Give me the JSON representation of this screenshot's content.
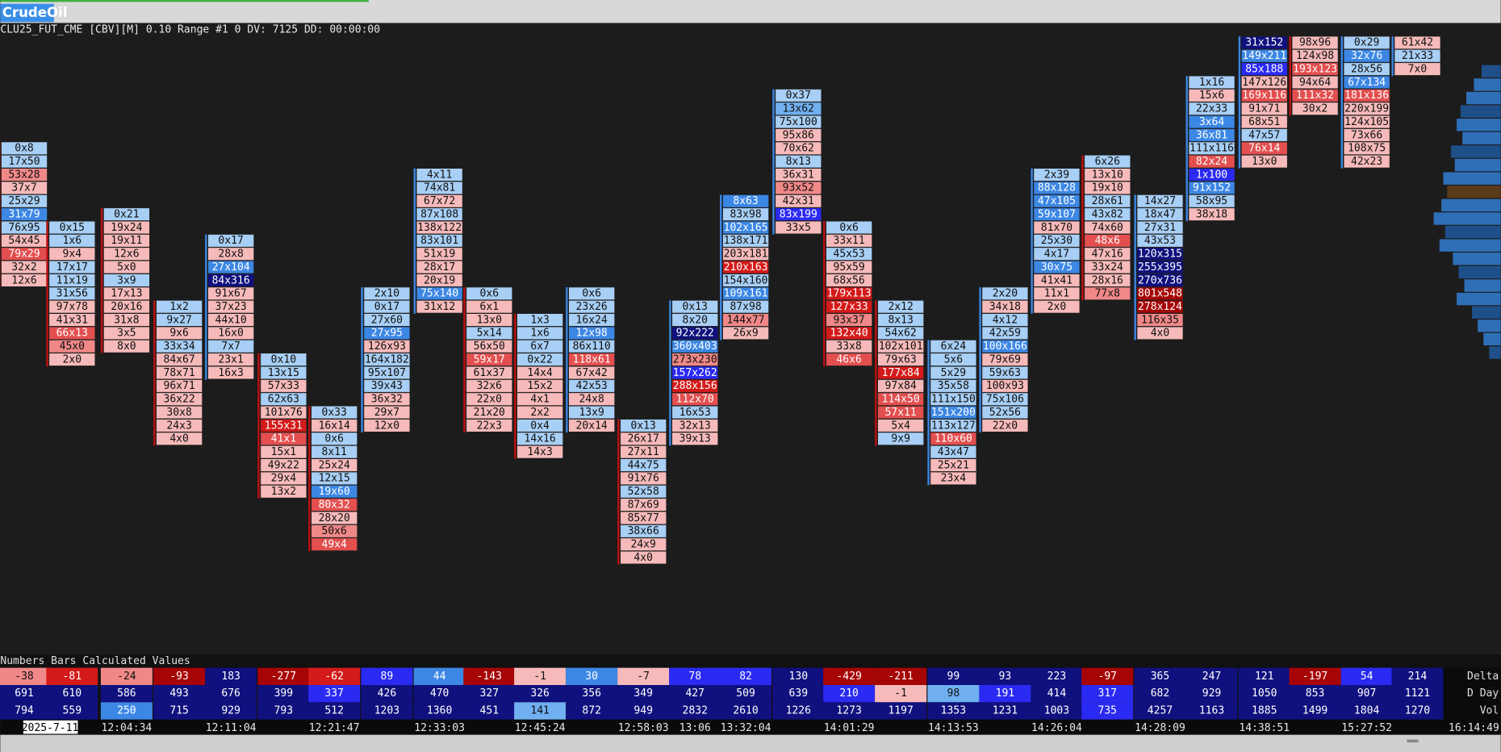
{
  "header": {
    "title": "CrudeOil",
    "info": "CLU25_FUT_CME [CBV][M]  0.10 Range #1 0 DV: 7125 DD: 00:00:00"
  },
  "columns": [
    {
      "cells": [
        "0x8",
        "17x50",
        "53x28",
        "37x7",
        "25x29",
        "31x79",
        "76x95",
        "54x45",
        "79x29",
        "32x2",
        "12x6"
      ],
      "colors": [
        "#a8cff5",
        "#a8cff5",
        "#f08888",
        "#f7baba",
        "#a8cff5",
        "#3c87e4",
        "#a8cff5",
        "#f7baba",
        "#e34f4f",
        "#f7baba",
        "#f7baba"
      ]
    },
    {
      "cells": [
        "0x15",
        "1x6",
        "9x4",
        "17x17",
        "11x19",
        "31x56",
        "97x78",
        "41x31",
        "66x13",
        "45x0",
        "2x0"
      ],
      "colors": [
        "#a8cff5",
        "#a8cff5",
        "#f7baba",
        "#a8cff5",
        "#a8cff5",
        "#a8cff5",
        "#f7baba",
        "#f7baba",
        "#e34f4f",
        "#f08888",
        "#f7baba"
      ]
    },
    {
      "cells": [
        "0x21",
        "19x24",
        "19x11",
        "12x6",
        "5x0",
        "3x9",
        "17x13",
        "20x16",
        "31x8",
        "3x5",
        "8x0"
      ],
      "colors": [
        "#a8cff5",
        "#f7baba",
        "#f7baba",
        "#f7baba",
        "#f7baba",
        "#a8cff5",
        "#f7baba",
        "#f7baba",
        "#f7baba",
        "#f7baba",
        "#f7baba"
      ]
    },
    {
      "cells": [
        "1x2",
        "9x27",
        "9x6",
        "33x34",
        "84x67",
        "78x71",
        "96x71",
        "36x22",
        "30x8",
        "24x3",
        "4x0"
      ],
      "colors": [
        "#a8cff5",
        "#a8cff5",
        "#f7baba",
        "#a8cff5",
        "#f7baba",
        "#f7baba",
        "#f7baba",
        "#f7baba",
        "#f7baba",
        "#f7baba",
        "#f7baba"
      ]
    },
    {
      "cells": [
        "0x17",
        "28x8",
        "27x104",
        "84x316",
        "91x67",
        "37x23",
        "44x10",
        "16x0",
        "7x7",
        "23x1",
        "16x3"
      ],
      "colors": [
        "#a8cff5",
        "#f7baba",
        "#3c87e4",
        "#10107e",
        "#f7baba",
        "#f7baba",
        "#f7baba",
        "#f7baba",
        "#a8cff5",
        "#f7baba",
        "#f7baba"
      ]
    },
    {
      "cells": [
        "0x10",
        "13x15",
        "57x33",
        "62x63",
        "101x76",
        "155x31",
        "41x1",
        "15x1",
        "49x22",
        "29x4",
        "13x2"
      ],
      "colors": [
        "#a8cff5",
        "#a8cff5",
        "#f7baba",
        "#a8cff5",
        "#f7baba",
        "#d41a1a",
        "#e34f4f",
        "#f7baba",
        "#f7baba",
        "#f7baba",
        "#f7baba"
      ]
    },
    {
      "cells": [
        "0x33",
        "16x14",
        "0x6",
        "8x11",
        "25x24",
        "12x15",
        "19x60",
        "80x32",
        "28x20",
        "50x6",
        "49x4"
      ],
      "colors": [
        "#a8cff5",
        "#f7baba",
        "#a8cff5",
        "#a8cff5",
        "#f7baba",
        "#a8cff5",
        "#3c87e4",
        "#e34f4f",
        "#f7baba",
        "#f08888",
        "#e34f4f"
      ]
    },
    {
      "cells": [
        "2x10",
        "0x17",
        "27x60",
        "27x95",
        "126x93",
        "164x182",
        "95x107",
        "39x43",
        "36x32",
        "29x7",
        "12x0"
      ],
      "colors": [
        "#a8cff5",
        "#a8cff5",
        "#a8cff5",
        "#3c87e4",
        "#f7baba",
        "#a8cff5",
        "#a8cff5",
        "#a8cff5",
        "#f7baba",
        "#f7baba",
        "#f7baba"
      ]
    },
    {
      "cells": [
        "4x11",
        "74x81",
        "67x72",
        "87x108",
        "138x122",
        "83x101",
        "51x19",
        "28x17",
        "20x19",
        "75x140",
        "31x12"
      ],
      "colors": [
        "#a8cff5",
        "#a8cff5",
        "#f7baba",
        "#a8cff5",
        "#f7baba",
        "#a8cff5",
        "#f7baba",
        "#f7baba",
        "#f7baba",
        "#3c87e4",
        "#f7baba"
      ]
    },
    {
      "cells": [
        "0x6",
        "6x1",
        "13x0",
        "5x14",
        "56x50",
        "59x17",
        "61x37",
        "32x6",
        "22x0",
        "21x20",
        "22x3"
      ],
      "colors": [
        "#a8cff5",
        "#f7baba",
        "#f7baba",
        "#a8cff5",
        "#f7baba",
        "#e34f4f",
        "#f7baba",
        "#f7baba",
        "#f7baba",
        "#f7baba",
        "#f7baba"
      ]
    },
    {
      "cells": [
        "1x3",
        "1x6",
        "6x7",
        "0x22",
        "14x4",
        "15x2",
        "4x1",
        "2x2",
        "0x4",
        "14x16",
        "14x3"
      ],
      "colors": [
        "#a8cff5",
        "#a8cff5",
        "#a8cff5",
        "#a8cff5",
        "#f7baba",
        "#f7baba",
        "#f7baba",
        "#f7baba",
        "#a8cff5",
        "#a8cff5",
        "#f7baba"
      ]
    },
    {
      "cells": [
        "0x6",
        "23x26",
        "16x24",
        "12x98",
        "86x110",
        "118x61",
        "67x42",
        "42x53",
        "24x8",
        "13x9",
        "20x14"
      ],
      "colors": [
        "#a8cff5",
        "#a8cff5",
        "#a8cff5",
        "#3c87e4",
        "#a8cff5",
        "#e34f4f",
        "#f7baba",
        "#a8cff5",
        "#f7baba",
        "#a8cff5",
        "#f7baba"
      ]
    },
    {
      "cells": [
        "0x13",
        "26x17",
        "27x11",
        "44x75",
        "91x76",
        "52x58",
        "87x69",
        "85x77",
        "38x66",
        "24x9",
        "4x0"
      ],
      "colors": [
        "#a8cff5",
        "#f7baba",
        "#f7baba",
        "#a8cff5",
        "#f7baba",
        "#a8cff5",
        "#f7baba",
        "#f7baba",
        "#a8cff5",
        "#f7baba",
        "#f7baba"
      ]
    },
    {
      "cells": [
        "0x13",
        "8x20",
        "92x222",
        "360x403",
        "273x230",
        "157x262",
        "288x156",
        "112x70",
        "16x53",
        "32x13",
        "39x13"
      ],
      "colors": [
        "#a8cff5",
        "#a8cff5",
        "#10107e",
        "#3c87e4",
        "#f08888",
        "#2a2af2",
        "#d41a1a",
        "#e34f4f",
        "#a8cff5",
        "#f7baba",
        "#f7baba"
      ]
    },
    {
      "cells": [
        "8x63",
        "83x98",
        "102x165",
        "138x171",
        "203x181",
        "210x163",
        "154x160",
        "109x161",
        "87x98",
        "144x77",
        "26x9"
      ],
      "colors": [
        "#3c87e4",
        "#a8cff5",
        "#3c87e4",
        "#a8cff5",
        "#f7baba",
        "#d41a1a",
        "#a8cff5",
        "#3c87e4",
        "#a8cff5",
        "#f08888",
        "#f7baba"
      ]
    },
    {
      "cells": [
        "0x37",
        "13x62",
        "75x100",
        "95x86",
        "70x62",
        "8x13",
        "36x31",
        "93x52",
        "42x31",
        "83x199",
        "33x5"
      ],
      "colors": [
        "#a8cff5",
        "#70b0f0",
        "#a8cff5",
        "#f7baba",
        "#f7baba",
        "#a8cff5",
        "#f7baba",
        "#f08888",
        "#f7baba",
        "#2a2af2",
        "#f7baba"
      ]
    },
    {
      "cells": [
        "0x6",
        "33x11",
        "45x53",
        "95x59",
        "68x56",
        "179x113",
        "127x33",
        "93x37",
        "132x40",
        "33x8",
        "46x6"
      ],
      "colors": [
        "#a8cff5",
        "#f7baba",
        "#a8cff5",
        "#f7baba",
        "#f7baba",
        "#d41a1a",
        "#d41a1a",
        "#f08888",
        "#d41a1a",
        "#f7baba",
        "#e34f4f"
      ]
    },
    {
      "cells": [
        "2x12",
        "8x13",
        "54x62",
        "102x101",
        "79x63",
        "177x84",
        "97x84",
        "114x50",
        "57x11",
        "5x4",
        "9x9"
      ],
      "colors": [
        "#a8cff5",
        "#a8cff5",
        "#a8cff5",
        "#f7baba",
        "#f7baba",
        "#d41a1a",
        "#f7baba",
        "#e34f4f",
        "#e34f4f",
        "#f7baba",
        "#a8cff5"
      ]
    },
    {
      "cells": [
        "6x24",
        "5x6",
        "5x29",
        "35x58",
        "111x150",
        "151x200",
        "113x127",
        "110x60",
        "43x47",
        "25x21",
        "23x4"
      ],
      "colors": [
        "#a8cff5",
        "#a8cff5",
        "#a8cff5",
        "#a8cff5",
        "#a8cff5",
        "#3c87e4",
        "#a8cff5",
        "#e34f4f",
        "#a8cff5",
        "#f7baba",
        "#f7baba"
      ]
    },
    {
      "cells": [
        "2x20",
        "34x18",
        "4x12",
        "42x59",
        "100x166",
        "79x69",
        "59x63",
        "100x93",
        "75x106",
        "52x56",
        "22x0"
      ],
      "colors": [
        "#a8cff5",
        "#f7baba",
        "#a8cff5",
        "#a8cff5",
        "#3c87e4",
        "#f7baba",
        "#a8cff5",
        "#f7baba",
        "#a8cff5",
        "#a8cff5",
        "#f7baba"
      ]
    },
    {
      "cells": [
        "2x39",
        "88x128",
        "47x105",
        "59x107",
        "81x70",
        "25x30",
        "4x17",
        "30x75",
        "41x41",
        "11x1",
        "2x0"
      ],
      "colors": [
        "#a8cff5",
        "#3c87e4",
        "#3c87e4",
        "#3c87e4",
        "#f7baba",
        "#a8cff5",
        "#a8cff5",
        "#3c87e4",
        "#f7baba",
        "#f7baba",
        "#f7baba"
      ]
    },
    {
      "cells": [
        "6x26",
        "13x10",
        "19x10",
        "28x61",
        "43x82",
        "74x60",
        "48x6",
        "47x16",
        "33x24",
        "28x16",
        "77x8"
      ],
      "colors": [
        "#a8cff5",
        "#f7baba",
        "#f7baba",
        "#a8cff5",
        "#a8cff5",
        "#f7baba",
        "#e34f4f",
        "#f7baba",
        "#f7baba",
        "#f7baba",
        "#f08888"
      ]
    },
    {
      "cells": [
        "14x27",
        "18x47",
        "27x31",
        "43x53",
        "120x315",
        "255x395",
        "270x736",
        "801x548",
        "278x124",
        "116x35",
        "4x0"
      ],
      "colors": [
        "#a8cff5",
        "#a8cff5",
        "#a8cff5",
        "#a8cff5",
        "#10107e",
        "#10107e",
        "#10107e",
        "#a50505",
        "#a50505",
        "#f08888",
        "#f7baba"
      ]
    },
    {
      "cells": [
        "1x16",
        "15x6",
        "22x33",
        "3x64",
        "36x81",
        "111x116",
        "82x24",
        "1x100",
        "91x152",
        "58x95",
        "38x18"
      ],
      "colors": [
        "#a8cff5",
        "#f7baba",
        "#a8cff5",
        "#3c87e4",
        "#3c87e4",
        "#a8cff5",
        "#e34f4f",
        "#2a2af2",
        "#3c87e4",
        "#a8cff5",
        "#f7baba"
      ]
    },
    {
      "cells": [
        "31x152",
        "149x211",
        "85x188",
        "147x126",
        "169x116",
        "91x71",
        "68x51",
        "47x57",
        "76x14",
        "13x0"
      ],
      "colors": [
        "#10107e",
        "#3c87e4",
        "#2a2af2",
        "#f7baba",
        "#e34f4f",
        "#f7baba",
        "#f7baba",
        "#a8cff5",
        "#e34f4f",
        "#f7baba"
      ]
    },
    {
      "cells": [
        "98x96",
        "124x98",
        "193x123",
        "94x64",
        "111x32",
        "30x2"
      ],
      "colors": [
        "#f7baba",
        "#f7baba",
        "#e34f4f",
        "#f7baba",
        "#e34f4f",
        "#f7baba"
      ]
    },
    {
      "cells": [
        "0x29",
        "32x76",
        "28x56",
        "67x134",
        "181x136",
        "220x199",
        "124x105",
        "73x66",
        "108x75",
        "42x23"
      ],
      "colors": [
        "#a8cff5",
        "#3c87e4",
        "#a8cff5",
        "#3c87e4",
        "#e34f4f",
        "#f7baba",
        "#f7baba",
        "#f7baba",
        "#f7baba",
        "#f7baba"
      ]
    },
    {
      "cells": [
        "61x42",
        "21x33",
        "7x0"
      ],
      "colors": [
        "#f7baba",
        "#a8cff5",
        "#f7baba"
      ]
    }
  ],
  "summary": {
    "title": "Numbers Bars Calculated Values",
    "rows": [
      {
        "label": "Delta",
        "values": [
          -38,
          -81,
          -24,
          -93,
          183,
          -277,
          -62,
          89,
          44,
          -143,
          -1,
          30,
          -7,
          78,
          82,
          130,
          -429,
          -211,
          99,
          93,
          223,
          -97,
          365,
          247,
          121,
          -197,
          54,
          214
        ],
        "colors": [
          "#f08888",
          "#d41a1a",
          "#f08888",
          "#a50505",
          "#10107e",
          "#a50505",
          "#d41a1a",
          "#2a2af2",
          "#3c87e4",
          "#a50505",
          "#f7baba",
          "#3c87e4",
          "#f7baba",
          "#2a2af2",
          "#2a2af2",
          "#10107e",
          "#a50505",
          "#a50505",
          "#10107e",
          "#10107e",
          "#10107e",
          "#a50505",
          "#10107e",
          "#10107e",
          "#10107e",
          "#a50505",
          "#2a2af2",
          "#10107e"
        ]
      },
      {
        "label": "D Day",
        "values": [
          691,
          610,
          586,
          493,
          676,
          399,
          337,
          426,
          470,
          327,
          326,
          356,
          349,
          427,
          509,
          639,
          210,
          -1,
          98,
          191,
          414,
          317,
          682,
          929,
          1050,
          853,
          907,
          1121
        ],
        "colors": [
          "#10107e",
          "#10107e",
          "#10107e",
          "#10107e",
          "#10107e",
          "#10107e",
          "#2a2af2",
          "#10107e",
          "#10107e",
          "#10107e",
          "#10107e",
          "#10107e",
          "#10107e",
          "#10107e",
          "#10107e",
          "#10107e",
          "#2a2af2",
          "#f7baba",
          "#70b0f0",
          "#2a2af2",
          "#10107e",
          "#2a2af2",
          "#10107e",
          "#10107e",
          "#10107e",
          "#10107e",
          "#10107e",
          "#10107e"
        ]
      },
      {
        "label": "Vol",
        "values": [
          794,
          559,
          250,
          715,
          929,
          793,
          512,
          1203,
          1360,
          451,
          141,
          872,
          949,
          2832,
          2610,
          1226,
          1273,
          1197,
          1353,
          1231,
          1003,
          735,
          4257,
          1163,
          1885,
          1499,
          1804,
          1270
        ],
        "colors": [
          "#10107e",
          "#10107e",
          "#3c87e4",
          "#10107e",
          "#10107e",
          "#10107e",
          "#10107e",
          "#10107e",
          "#10107e",
          "#10107e",
          "#70b0f0",
          "#10107e",
          "#10107e",
          "#10107e",
          "#10107e",
          "#10107e",
          "#10107e",
          "#10107e",
          "#10107e",
          "#10107e",
          "#10107e",
          "#2a2af2",
          "#10107e",
          "#10107e",
          "#10107e",
          "#10107e",
          "#10107e",
          "#10107e"
        ]
      }
    ]
  },
  "time_axis": [
    "2025-7-11",
    "12:04:34",
    "12:11:04",
    "12:21:47",
    "12:33:03",
    "12:45:24",
    "12:58:03",
    "13:06",
    "13:32:04",
    "14:01:29",
    "14:13:53",
    "14:26:04",
    "14:28:09",
    "14:38:51",
    "15:27:52",
    "16:14:49"
  ]
}
